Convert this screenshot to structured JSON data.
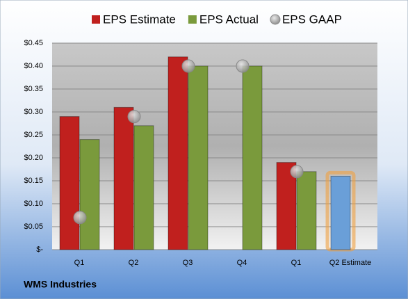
{
  "chart_data": {
    "type": "bar",
    "title": "WMS Industries",
    "categories": [
      "Q1",
      "Q2",
      "Q3",
      "Q4",
      "Q1",
      "Q2 Estimate"
    ],
    "series": [
      {
        "name": "EPS Estimate",
        "color": "#c0201e",
        "slot": 0,
        "values": [
          0.29,
          0.31,
          0.42,
          null,
          0.19,
          null
        ]
      },
      {
        "name": "EPS Actual",
        "color": "#7a9a3c",
        "slot": 1,
        "values": [
          0.24,
          0.27,
          0.4,
          0.4,
          0.17,
          null
        ]
      },
      {
        "name": "EPS GAAP",
        "color": "#a8a8a8",
        "marker": "circle",
        "values": [
          0.07,
          0.29,
          0.4,
          0.4,
          0.17,
          null
        ]
      },
      {
        "color": "#6a9fd8",
        "slot": 0,
        "highlight": "#f0a040",
        "values": [
          null,
          null,
          null,
          null,
          null,
          0.16
        ]
      }
    ],
    "ylim": [
      0,
      0.45
    ],
    "yticks": [
      {
        "value": 0,
        "label": "$-"
      },
      {
        "value": 0.05,
        "label": "$0.05"
      },
      {
        "value": 0.1,
        "label": "$0.10"
      },
      {
        "value": 0.15,
        "label": "$0.15"
      },
      {
        "value": 0.2,
        "label": "$0.20"
      },
      {
        "value": 0.25,
        "label": "$0.25"
      },
      {
        "value": 0.3,
        "label": "$0.30"
      },
      {
        "value": 0.35,
        "label": "$0.35"
      },
      {
        "value": 0.4,
        "label": "$0.40"
      },
      {
        "value": 0.45,
        "label": "$0.45"
      }
    ],
    "grid": true
  }
}
